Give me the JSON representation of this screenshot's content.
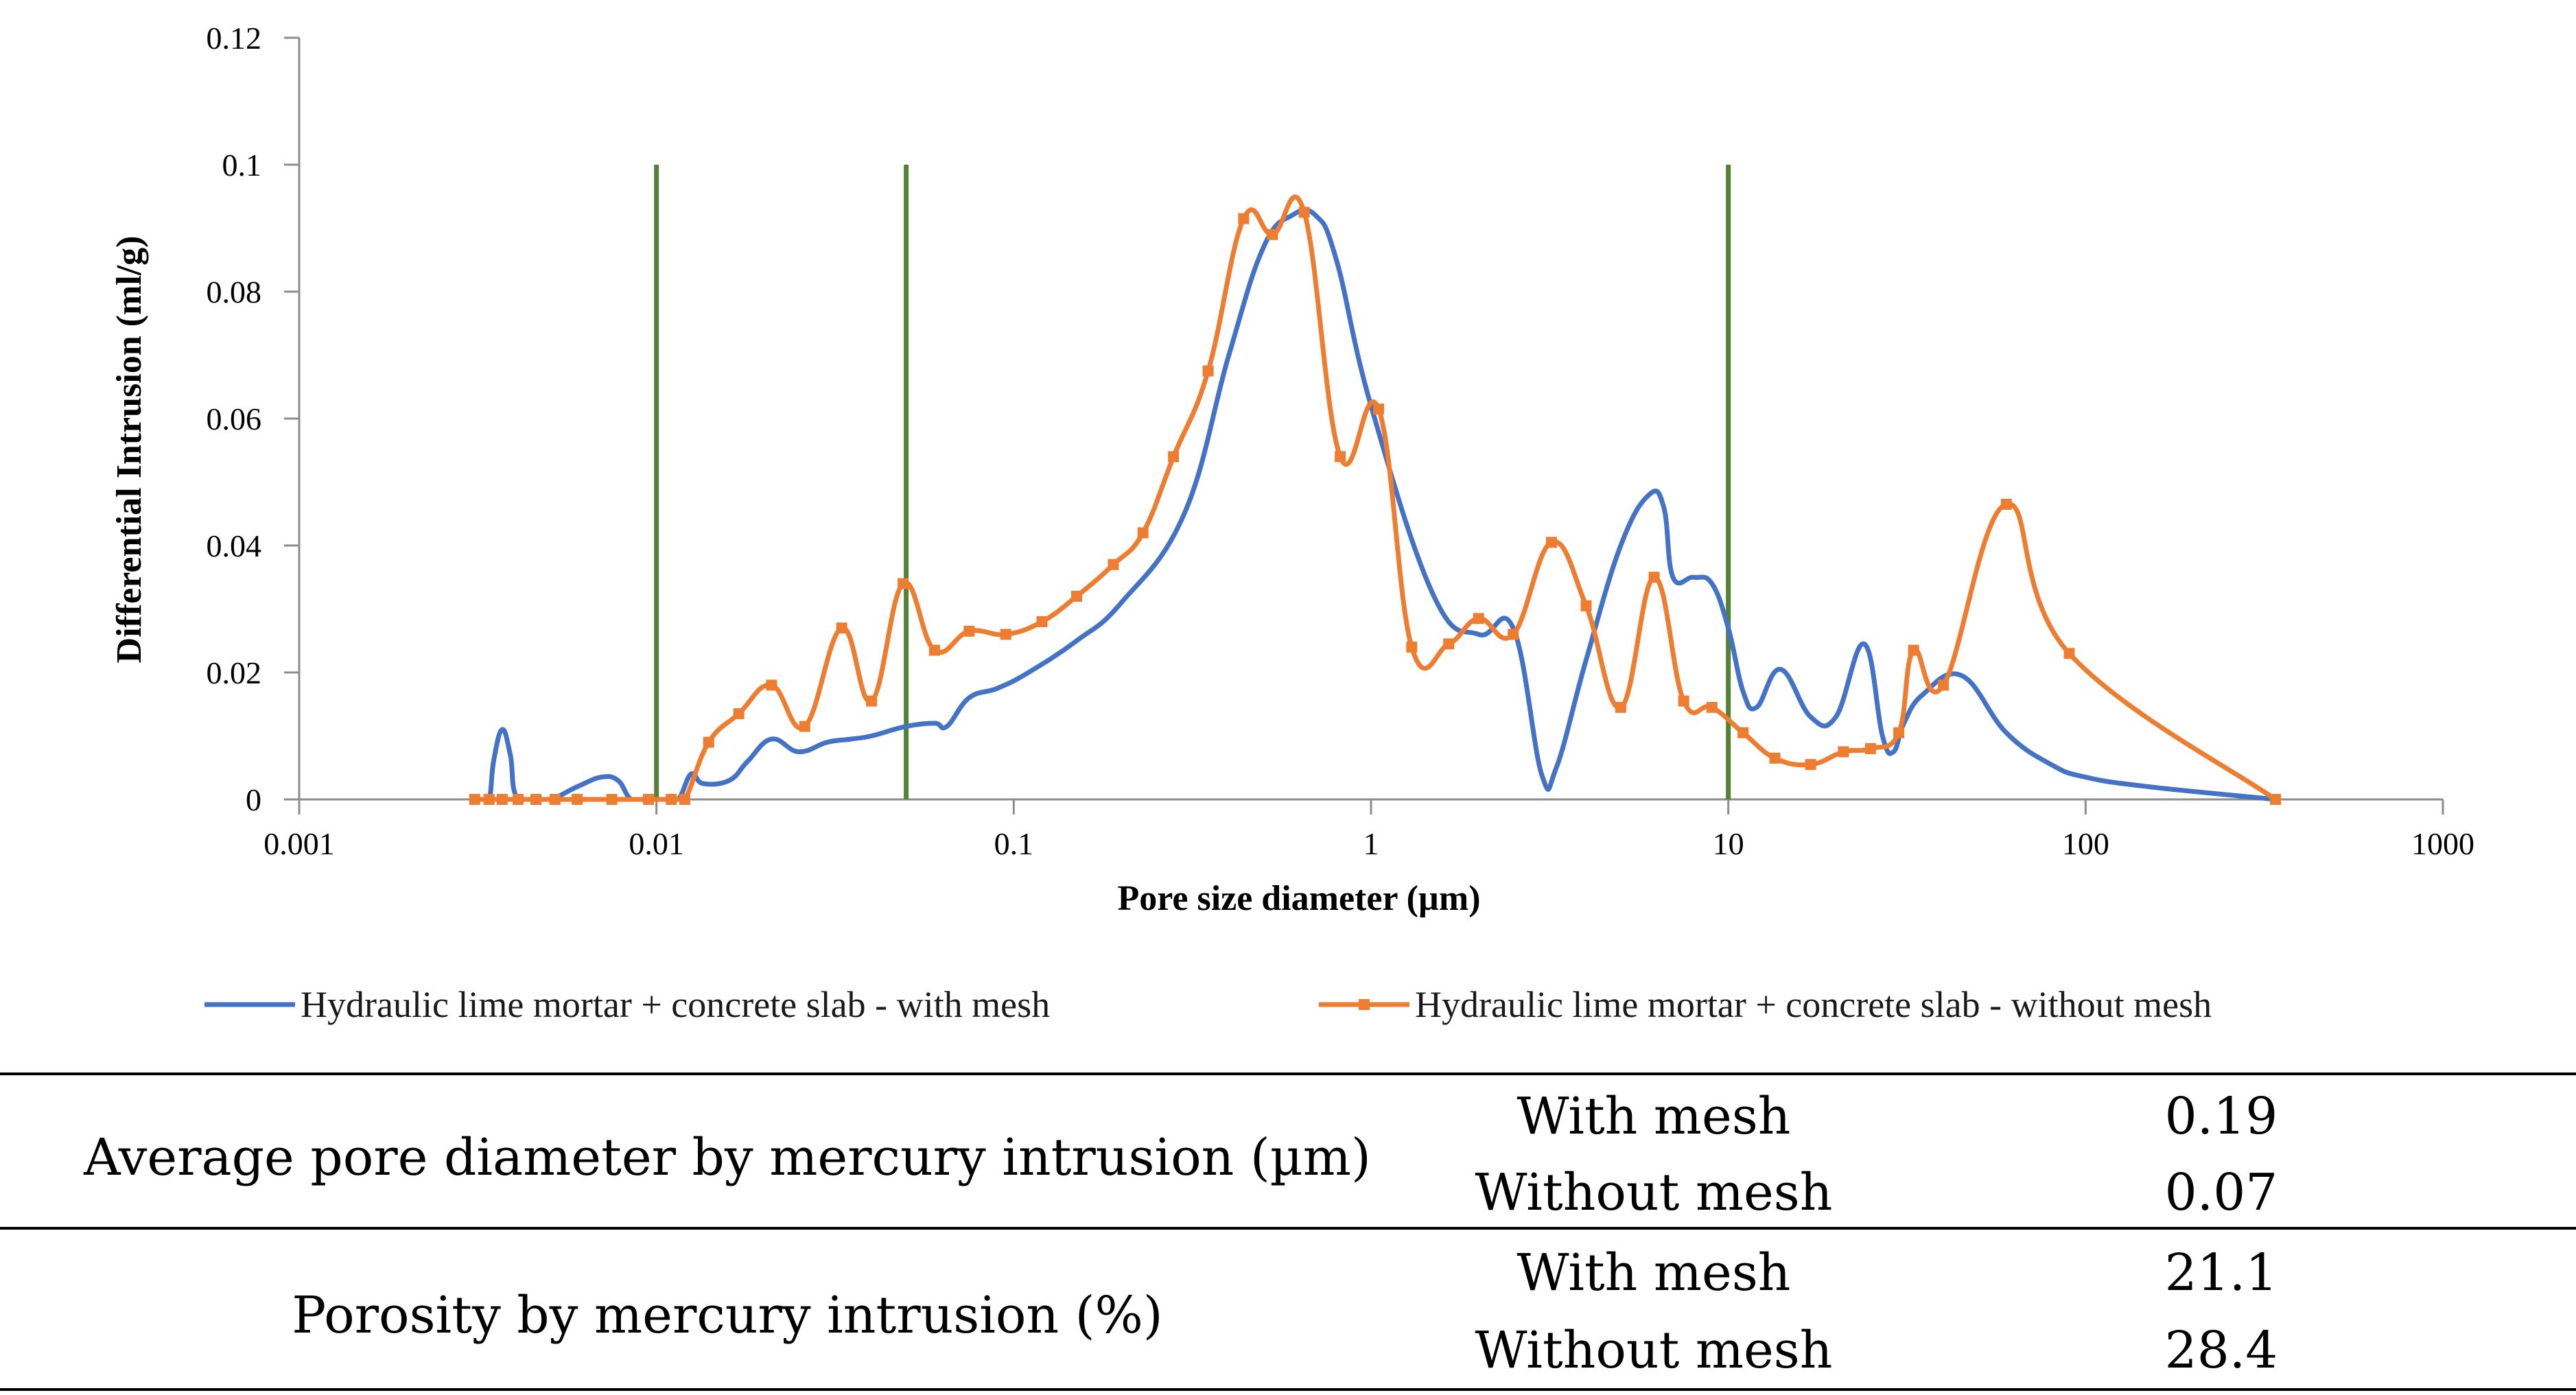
{
  "chart_data": {
    "type": "line",
    "title": "",
    "xlabel": "Pore size diameter (µm)",
    "ylabel": "Differential Intrusion  (ml/g)",
    "xscale": "log",
    "xlim": [
      0.001,
      1000
    ],
    "ylim": [
      0,
      0.12
    ],
    "x_ticks": [
      0.001,
      0.01,
      0.1,
      1,
      10,
      100,
      1000
    ],
    "x_tick_labels": [
      "0.001",
      "0.01",
      "0.1",
      "1",
      "10",
      "100",
      "1000"
    ],
    "y_ticks": [
      0,
      0.02,
      0.04,
      0.06,
      0.08,
      0.1,
      0.12
    ],
    "y_tick_labels": [
      "0",
      "0.02",
      "0.04",
      "0.06",
      "0.08",
      "0.1",
      "0.12"
    ],
    "grid": false,
    "legend_position": "bottom",
    "vertical_lines": {
      "color": "#548235",
      "x": [
        0.01,
        0.05,
        10
      ],
      "y_range": [
        0,
        0.1
      ]
    },
    "series": [
      {
        "name": "Hydraulic lime mortar + concrete slab - with mesh",
        "color": "#4472C4",
        "marker": "none",
        "x": [
          0.0032,
          0.0034,
          0.0035,
          0.0037,
          0.0039,
          0.0041,
          0.005,
          0.006,
          0.007,
          0.0078,
          0.0085,
          0.0095,
          0.0105,
          0.0115,
          0.0125,
          0.0135,
          0.016,
          0.018,
          0.021,
          0.025,
          0.03,
          0.035,
          0.04,
          0.05,
          0.06,
          0.065,
          0.075,
          0.09,
          0.11,
          0.15,
          0.2,
          0.3,
          0.4,
          0.5,
          0.6,
          0.7,
          0.8,
          1.0,
          1.5,
          2.0,
          2.5,
          3.0,
          3.3,
          4.0,
          5.0,
          6.0,
          6.6,
          7.0,
          8.0,
          9.0,
          10.0,
          11.0,
          12.0,
          14.0,
          17.0,
          20.0,
          24.0,
          27.0,
          29.0,
          31.0,
          35.0,
          45.0,
          60.0,
          80.0,
          100.0,
          150.0,
          340.0
        ],
        "values": [
          0.0,
          0.0,
          0.006,
          0.011,
          0.007,
          0.0,
          0.0,
          0.002,
          0.0035,
          0.003,
          0.0,
          0.0,
          0.0,
          0.0,
          0.004,
          0.0025,
          0.003,
          0.006,
          0.0095,
          0.0075,
          0.009,
          0.0095,
          0.01,
          0.0115,
          0.012,
          0.0115,
          0.016,
          0.0175,
          0.02,
          0.025,
          0.031,
          0.045,
          0.07,
          0.087,
          0.092,
          0.092,
          0.085,
          0.062,
          0.032,
          0.026,
          0.027,
          0.004,
          0.005,
          0.022,
          0.04,
          0.048,
          0.046,
          0.035,
          0.035,
          0.034,
          0.027,
          0.017,
          0.0145,
          0.0205,
          0.013,
          0.013,
          0.0245,
          0.01,
          0.0075,
          0.012,
          0.0165,
          0.0195,
          0.0105,
          0.0055,
          0.0035,
          0.002,
          0.0
        ]
      },
      {
        "name": "Hydraulic lime mortar + concrete slab - without mesh",
        "color": "#ED7D31",
        "marker": "square",
        "x": [
          0.0031,
          0.0034,
          0.0037,
          0.0041,
          0.0046,
          0.0052,
          0.006,
          0.0075,
          0.0095,
          0.011,
          0.012,
          0.014,
          0.017,
          0.021,
          0.026,
          0.033,
          0.04,
          0.049,
          0.06,
          0.075,
          0.095,
          0.12,
          0.15,
          0.19,
          0.23,
          0.28,
          0.35,
          0.44,
          0.53,
          0.65,
          0.82,
          1.05,
          1.3,
          1.65,
          2.0,
          2.5,
          3.2,
          4.0,
          5.0,
          6.2,
          7.5,
          9.0,
          11.0,
          13.5,
          17.0,
          21.0,
          25.0,
          30.0,
          33.0,
          40.0,
          60.0,
          90.0,
          340.0
        ],
        "values": [
          0.0,
          0.0,
          0.0,
          0.0,
          0.0,
          0.0,
          0.0,
          0.0,
          0.0,
          0.0,
          0.0,
          0.009,
          0.0135,
          0.018,
          0.0115,
          0.027,
          0.0155,
          0.034,
          0.0235,
          0.0265,
          0.026,
          0.028,
          0.032,
          0.037,
          0.042,
          0.054,
          0.0675,
          0.0915,
          0.089,
          0.0925,
          0.054,
          0.0615,
          0.024,
          0.0245,
          0.0285,
          0.026,
          0.0405,
          0.0305,
          0.0145,
          0.035,
          0.0155,
          0.0145,
          0.0105,
          0.0065,
          0.0055,
          0.0075,
          0.008,
          0.0105,
          0.0235,
          0.018,
          0.0465,
          0.023,
          0.0
        ]
      }
    ]
  },
  "table": {
    "rows": [
      {
        "label": "Average pore diameter by mercury intrusion (µm)",
        "entries": [
          {
            "condition": "With mesh",
            "value": "0.19"
          },
          {
            "condition": "Without mesh",
            "value": "0.07"
          }
        ]
      },
      {
        "label": "Porosity by mercury intrusion (%)",
        "entries": [
          {
            "condition": "With mesh",
            "value": "21.1"
          },
          {
            "condition": "Without mesh",
            "value": "28.4"
          }
        ]
      }
    ]
  }
}
